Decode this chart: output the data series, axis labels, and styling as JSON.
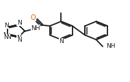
{
  "bg_color": "#ffffff",
  "line_color": "#1a1a1a",
  "bond_lw": 1.3,
  "figsize": [
    1.9,
    1.2
  ],
  "dpi": 100,
  "label_color_O": "#cc6600",
  "label_color_N": "#1a1a1a",
  "fs": 6.5,
  "xlim": [
    0.0,
    1.0
  ],
  "ylim": [
    0.05,
    0.95
  ]
}
